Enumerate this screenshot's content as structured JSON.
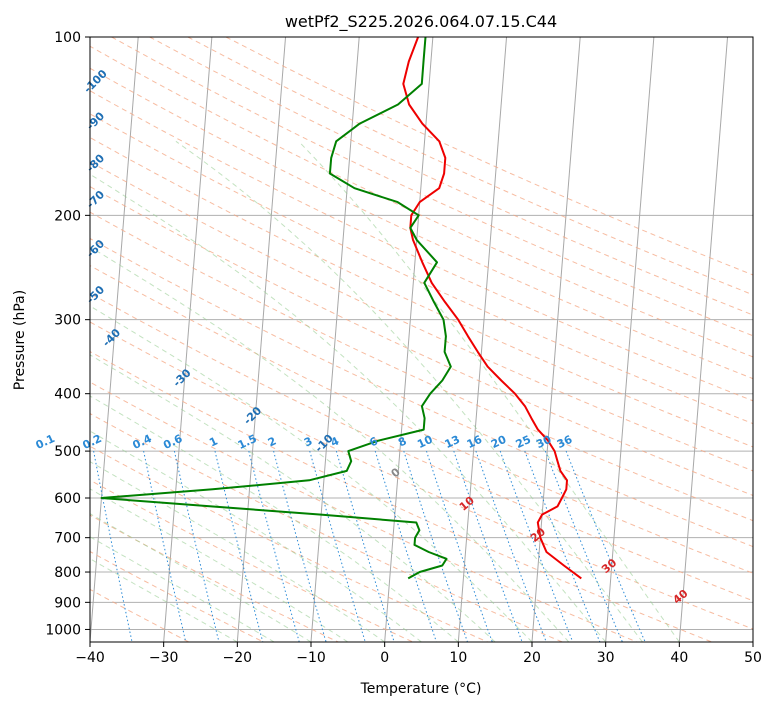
{
  "chart_data": {
    "type": "line",
    "title": "wetPf2_S225.2026.064.07.15.C44",
    "xlabel": "Temperature (°C)",
    "ylabel": "Pressure (hPa)",
    "xlim": [
      -40,
      50
    ],
    "ylim": [
      1050,
      100
    ],
    "y_scale": "log",
    "grid": true,
    "x_ticks": [
      "−40",
      "−30",
      "−20",
      "−10",
      "0",
      "10",
      "20",
      "30",
      "40",
      "50"
    ],
    "y_ticks": [
      "100",
      "200",
      "300",
      "400",
      "500",
      "600",
      "700",
      "800",
      "900",
      "1000"
    ],
    "series": [
      {
        "color": "#ee0000",
        "pressure": [
          820,
          780,
          740,
          700,
          660,
          640,
          620,
          600,
          580,
          560,
          540,
          520,
          500,
          480,
          460,
          440,
          420,
          400,
          380,
          360,
          340,
          320,
          300,
          280,
          260,
          240,
          220,
          210,
          200,
          190,
          180,
          170,
          160,
          150,
          140,
          130,
          120,
          110,
          100
        ],
        "temperature": [
          26.0,
          23.5,
          21.0,
          20.0,
          19.5,
          20.0,
          22.0,
          22.5,
          23.0,
          23.0,
          22.0,
          21.5,
          21.0,
          20.0,
          18.5,
          17.5,
          16.5,
          15.0,
          13.0,
          11.0,
          9.5,
          8.0,
          6.5,
          4.5,
          2.5,
          1.0,
          -0.5,
          -1.0,
          -1.0,
          0.0,
          2.5,
          3.0,
          3.0,
          2.0,
          -0.5,
          -2.5,
          -3.5,
          -3.0,
          -2.0
        ]
      },
      {
        "color": "#008000",
        "pressure": [
          820,
          800,
          780,
          760,
          740,
          720,
          700,
          680,
          660,
          640,
          620,
          600,
          580,
          560,
          540,
          520,
          500,
          480,
          460,
          440,
          420,
          400,
          380,
          360,
          340,
          320,
          300,
          280,
          260,
          240,
          220,
          210,
          200,
          190,
          180,
          170,
          160,
          150,
          140,
          130,
          120,
          110,
          100
        ],
        "dewpoint": [
          2.5,
          4.0,
          7.0,
          7.5,
          5.0,
          3.0,
          3.0,
          3.5,
          3.0,
          -10.0,
          -25.0,
          -40.0,
          -25.0,
          -12.0,
          -7.0,
          -6.5,
          -7.0,
          -3.0,
          3.0,
          3.0,
          2.5,
          3.5,
          5.0,
          6.0,
          5.0,
          5.0,
          4.5,
          3.0,
          1.5,
          3.0,
          0.0,
          -1.0,
          0.0,
          -3.0,
          -9.0,
          -12.5,
          -12.5,
          -12.0,
          -9.0,
          -4.0,
          -1.0,
          -1.0,
          -1.0
        ]
      }
    ],
    "isotherm_labels": [
      "-100",
      "-90",
      "-80",
      "-70",
      "-60",
      "-50",
      "-40",
      "-30",
      "-20",
      "-10"
    ],
    "mixing_ratio_labels": [
      "0.1",
      "0.2",
      "0.4",
      "0.6",
      "1",
      "1.5",
      "2",
      "3",
      "4",
      "6",
      "8",
      "10",
      "13",
      "16",
      "20",
      "25",
      "30",
      "36"
    ],
    "moist_adiabat_labels": [
      "0",
      "10",
      "20",
      "30",
      "40"
    ]
  }
}
